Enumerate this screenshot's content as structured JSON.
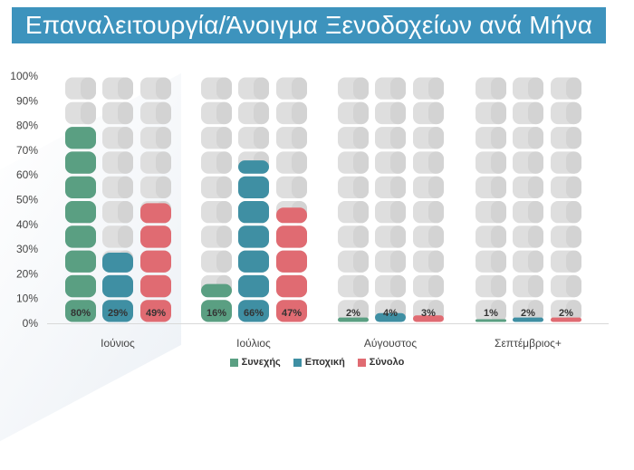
{
  "title": "Επαναλειτουργία/Άνοιγμα Ξενοδοχείων ανά Μήνα",
  "colors": {
    "title_bg": "#3d93bd",
    "empty_block": "#dedede",
    "empty_block_shade": "#d3d3d3",
    "label_text": "#333333"
  },
  "chart_data": {
    "type": "bar",
    "style": "stacked rounded blocks, 10 blocks per bar (each block = 10%)",
    "categories": [
      "Ιούνιος",
      "Ιούλιος",
      "Αύγουστος",
      "Σεπτέμβριος+"
    ],
    "series": [
      {
        "name": "Συνεχής",
        "color": "#5a9f82",
        "values": [
          80,
          16,
          2,
          1
        ],
        "labels": [
          "80%",
          "16%",
          "2%",
          "1%"
        ]
      },
      {
        "name": "Εποχική",
        "color": "#3f8fa3",
        "values": [
          29,
          66,
          4,
          2
        ],
        "labels": [
          "29%",
          "66%",
          "4%",
          "2%"
        ]
      },
      {
        "name": "Σύνολο",
        "color": "#e06b72",
        "values": [
          49,
          47,
          3,
          2
        ],
        "labels": [
          "49%",
          "47%",
          "3%",
          "2%"
        ]
      }
    ],
    "y_ticks": [
      "0%",
      "10%",
      "20%",
      "30%",
      "40%",
      "50%",
      "60%",
      "70%",
      "80%",
      "90%",
      "100%"
    ],
    "ylim": [
      0,
      100
    ],
    "grid": false,
    "legend_position": "bottom"
  }
}
